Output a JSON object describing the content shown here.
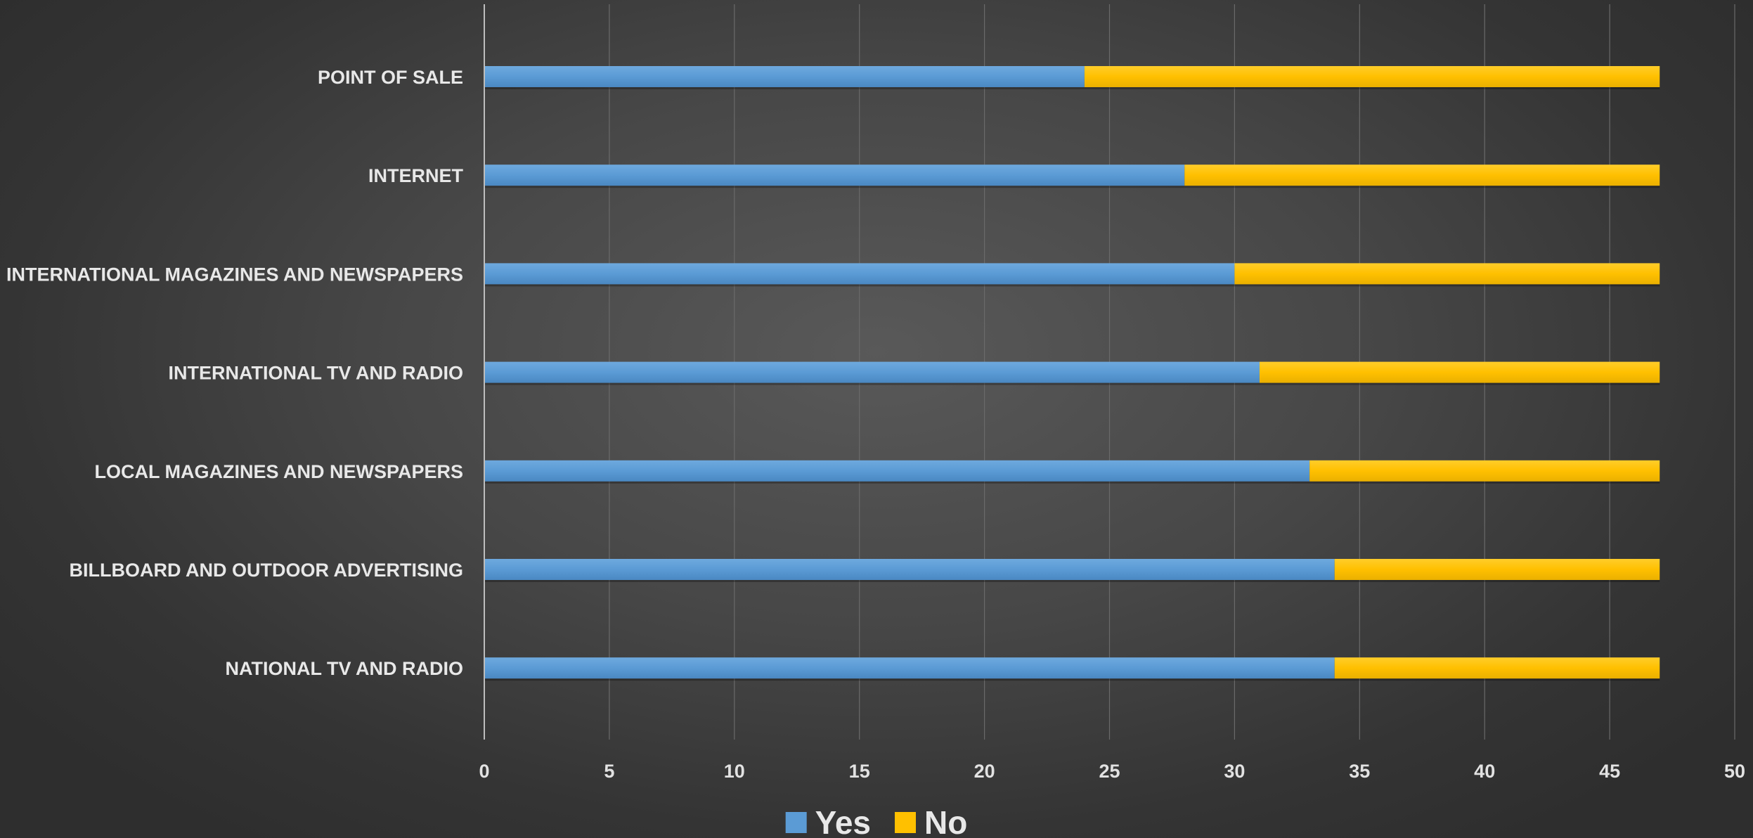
{
  "chart_data": {
    "type": "bar",
    "orientation": "horizontal",
    "stacked": true,
    "categories": [
      "POINT OF SALE",
      "INTERNET",
      "INTERNATIONAL MAGAZINES AND NEWSPAPERS",
      "INTERNATIONAL TV AND RADIO",
      "LOCAL MAGAZINES AND NEWSPAPERS",
      "BILLBOARD AND OUTDOOR ADVERTISING",
      "NATIONAL TV AND RADIO"
    ],
    "series": [
      {
        "name": "Yes",
        "color": "#5b9bd5",
        "values": [
          24,
          28,
          30,
          31,
          33,
          34,
          34
        ]
      },
      {
        "name": "No",
        "color": "#ffc000",
        "values": [
          23,
          19,
          17,
          16,
          14,
          13,
          13
        ]
      }
    ],
    "title": "",
    "xlabel": "",
    "ylabel": "",
    "xlim": [
      0,
      50
    ],
    "xticks": [
      "0",
      "5",
      "10",
      "15",
      "20",
      "25",
      "30",
      "35",
      "40",
      "45",
      "50"
    ],
    "grid": "vertical",
    "legend": "bottom"
  }
}
